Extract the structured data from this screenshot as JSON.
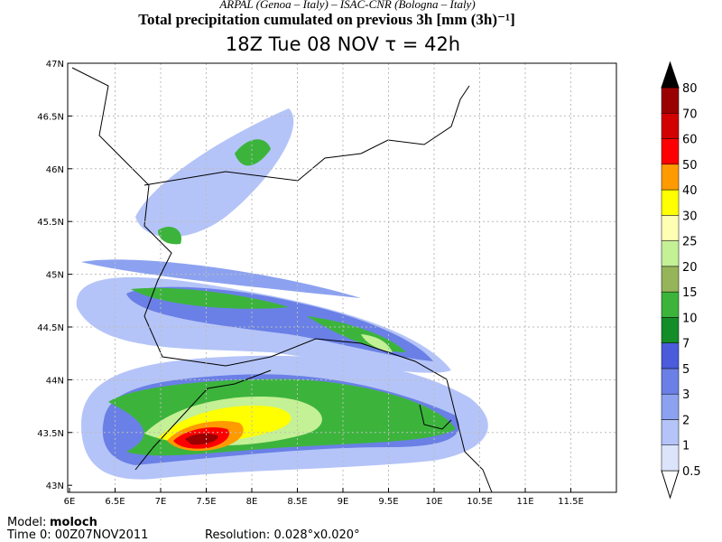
{
  "header": {
    "institutions": "ARPAL (Genoa – Italy)  –  ISAC-CNR (Bologna – Italy)",
    "title": "Total precipitation cumulated on previous 3h [mm (3h)⁻¹]",
    "time": "18Z Tue 08 NOV  τ = 42h"
  },
  "map": {
    "lat_labels": [
      "47N",
      "46.5N",
      "46N",
      "45.5N",
      "45N",
      "44.5N",
      "44N",
      "43.5N",
      "43N"
    ],
    "lon_labels": [
      "6E",
      "6.5E",
      "7E",
      "7.5E",
      "8E",
      "8.5E",
      "9E",
      "9.5E",
      "10E",
      "10.5E",
      "11E",
      "11.5E"
    ]
  },
  "colorbar": {
    "labels": [
      0.5,
      1,
      2,
      3,
      5,
      7,
      10,
      15,
      20,
      25,
      30,
      40,
      50,
      60,
      70,
      80
    ],
    "colors": [
      "#ffffff",
      "#dce4fc",
      "#b4c4f8",
      "#8ca2f0",
      "#6a80e6",
      "#4a5cdc",
      "#148c28",
      "#3cb43c",
      "#96b45a",
      "#c4f096",
      "#ffffb4",
      "#ffff00",
      "#ff9a00",
      "#ff0000",
      "#d20000",
      "#9a0000",
      "#000000"
    ]
  },
  "footer": {
    "model_label": "Model:",
    "model": "moloch",
    "time0": "Time 0: 00Z07NOV2011",
    "resolution": "Resolution: 0.028°x0.020°"
  }
}
